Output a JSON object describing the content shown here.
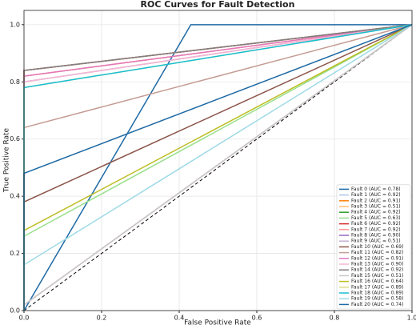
{
  "chart_data": {
    "type": "line",
    "title": "ROC Curves for Fault Detection",
    "xlabel": "False Positive Rate",
    "ylabel": "True Positive Rate",
    "xlim": [
      0,
      1
    ],
    "ylim": [
      0,
      1.05
    ],
    "xticks": [
      {
        "value": 0,
        "label": "0.0"
      },
      0.2,
      0.4,
      0.6,
      0.8,
      {
        "value": 1,
        "label": "1.0"
      }
    ],
    "yticks": [
      {
        "value": 0,
        "label": "0.0"
      },
      0.2,
      0.4,
      0.6,
      0.8,
      {
        "value": 1,
        "label": "1.0"
      }
    ],
    "grid": true,
    "legend": "lower right",
    "series": [
      {
        "name": "Fault 0 (AUC = 0.78)",
        "color": "#1f6aa5",
        "x": [
          0,
          0.43,
          1
        ],
        "values": [
          0,
          1,
          1
        ]
      },
      {
        "name": "Fault 1 (AUC = 0.92)",
        "color": "#aec7e8",
        "x": [
          0,
          0,
          1
        ],
        "values": [
          0,
          0.84,
          1
        ]
      },
      {
        "name": "Fault 2 (AUC = 0.91)",
        "color": "#ff7f0e",
        "x": [
          0,
          0,
          1
        ],
        "values": [
          0,
          0.82,
          1
        ]
      },
      {
        "name": "Fault 3 (AUC = 0.51)",
        "color": "#ffbb78",
        "x": [
          0,
          0,
          1
        ],
        "values": [
          0,
          0.02,
          1
        ]
      },
      {
        "name": "Fault 4 (AUC = 0.92)",
        "color": "#2ca02c",
        "x": [
          0,
          0,
          1
        ],
        "values": [
          0,
          0.84,
          1
        ]
      },
      {
        "name": "Fault 5 (AUC = 0.63)",
        "color": "#98df8a",
        "x": [
          0,
          0,
          1
        ],
        "values": [
          0,
          0.26,
          1
        ]
      },
      {
        "name": "Fault 6 (AUC = 0.92)",
        "color": "#d62728",
        "x": [
          0,
          0,
          1
        ],
        "values": [
          0,
          0.84,
          1
        ]
      },
      {
        "name": "Fault 7 (AUC = 0.92)",
        "color": "#ff9896",
        "x": [
          0,
          0,
          1
        ],
        "values": [
          0,
          0.84,
          1
        ]
      },
      {
        "name": "Fault 8 (AUC = 0.90)",
        "color": "#9467bd",
        "x": [
          0,
          0,
          1
        ],
        "values": [
          0,
          0.8,
          1
        ]
      },
      {
        "name": "Fault 9 (AUC = 0.51)",
        "color": "#c5b0d5",
        "x": [
          0,
          0,
          1
        ],
        "values": [
          0,
          0.02,
          1
        ]
      },
      {
        "name": "Fault 10 (AUC = 0.69)",
        "color": "#8c564b",
        "x": [
          0,
          0,
          1
        ],
        "values": [
          0,
          0.38,
          1
        ]
      },
      {
        "name": "Fault 11 (AUC = 0.82)",
        "color": "#c49c94",
        "x": [
          0,
          0,
          1
        ],
        "values": [
          0,
          0.64,
          1
        ]
      },
      {
        "name": "Fault 12 (AUC = 0.91)",
        "color": "#e377c2",
        "x": [
          0,
          0,
          1
        ],
        "values": [
          0,
          0.82,
          1
        ]
      },
      {
        "name": "Fault 13 (AUC = 0.90)",
        "color": "#f7b6d2",
        "x": [
          0,
          0,
          1
        ],
        "values": [
          0,
          0.8,
          1
        ]
      },
      {
        "name": "Fault 14 (AUC = 0.92)",
        "color": "#7f7f7f",
        "x": [
          0,
          0,
          1
        ],
        "values": [
          0,
          0.84,
          1
        ]
      },
      {
        "name": "Fault 15 (AUC = 0.51)",
        "color": "#c7c7c7",
        "x": [
          0,
          0,
          1
        ],
        "values": [
          0,
          0.02,
          1
        ]
      },
      {
        "name": "Fault 16 (AUC = 0.64)",
        "color": "#bcbd22",
        "x": [
          0,
          0,
          1
        ],
        "values": [
          0,
          0.28,
          1
        ]
      },
      {
        "name": "Fault 17 (AUC = 0.89)",
        "color": "#dbdb8d",
        "x": [
          0,
          0,
          1
        ],
        "values": [
          0,
          0.78,
          1
        ]
      },
      {
        "name": "Fault 18 (AUC = 0.89)",
        "color": "#17becf",
        "x": [
          0,
          0,
          1
        ],
        "values": [
          0,
          0.78,
          1
        ]
      },
      {
        "name": "Fault 19 (AUC = 0.58)",
        "color": "#9edae5",
        "x": [
          0,
          0,
          1
        ],
        "values": [
          0,
          0.16,
          1
        ]
      },
      {
        "name": "Fault 20 (AUC = 0.74)",
        "color": "#1f6aa5",
        "x": [
          0,
          0,
          1
        ],
        "values": [
          0,
          0.48,
          1
        ]
      }
    ]
  }
}
